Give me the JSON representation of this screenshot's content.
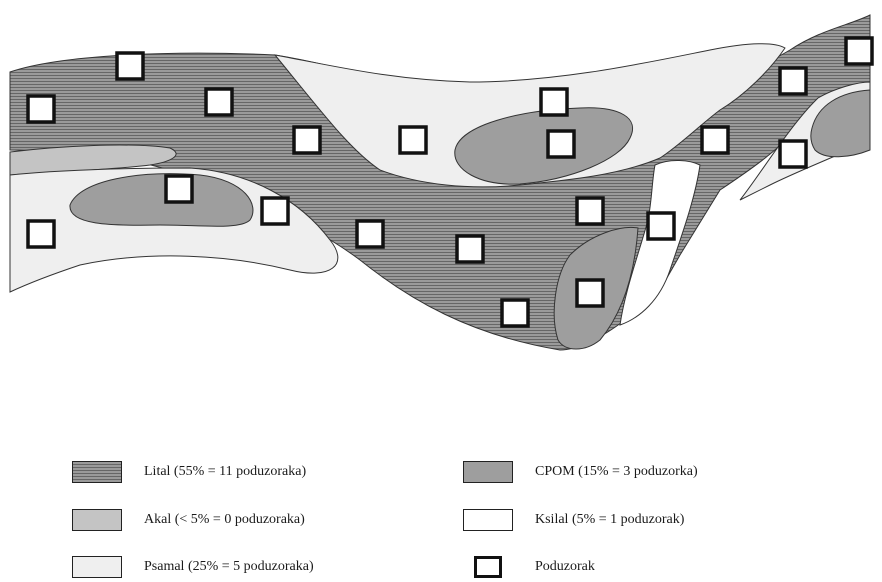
{
  "colors": {
    "lital_fill": "#9a9a9a",
    "lital_stripe": "#666666",
    "akal": "#c4c4c4",
    "psamal": "#efefef",
    "cpom": "#9e9e9e",
    "ksilal": "#ffffff",
    "outline": "#333333"
  },
  "legend": {
    "lital": "Lital (55% = 11 poduzoraka)",
    "cpom": "CPOM (15% = 3 poduzorka)",
    "akal": "Akal (< 5% = 0 poduzoraka)",
    "ksilal": "Ksilal (5% = 1 poduzorak)",
    "psamal": "Psamal (25% = 5 poduzoraka)",
    "poduzorak": "Poduzorak"
  }
}
